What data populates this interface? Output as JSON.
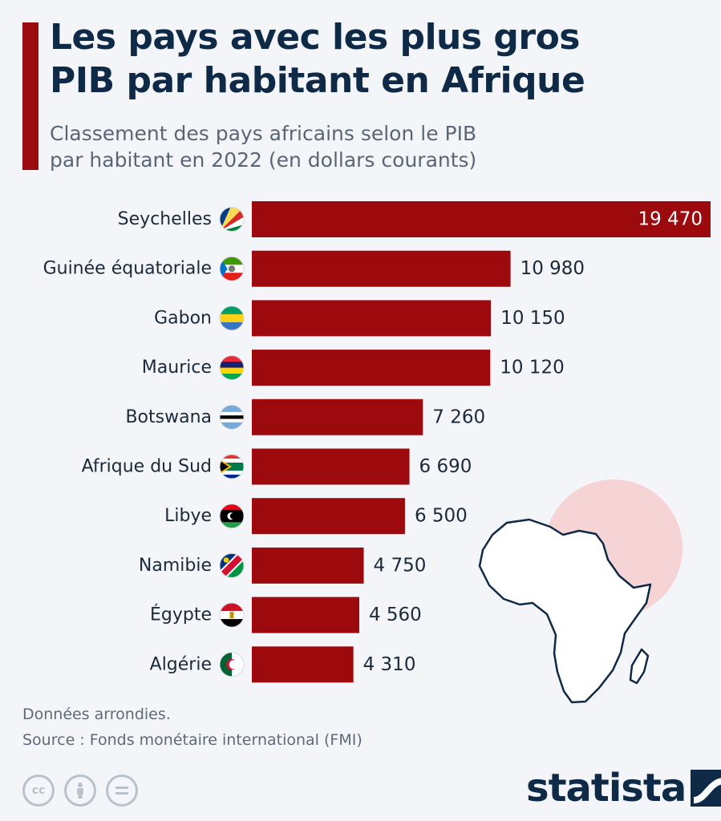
{
  "header": {
    "title_line1": "Les pays avec les plus gros",
    "title_line2": "PIB par habitant en Afrique",
    "subtitle_line1": "Classement des pays africains selon le PIB",
    "subtitle_line2": "par habitant en 2022 (en dollars courants)"
  },
  "chart_data": {
    "type": "bar",
    "orientation": "horizontal",
    "categories": [
      "Seychelles",
      "Guinée équatoriale",
      "Gabon",
      "Maurice",
      "Botswana",
      "Afrique du Sud",
      "Libye",
      "Namibie",
      "Égypte",
      "Algérie"
    ],
    "values": [
      19470,
      10980,
      10150,
      10120,
      7260,
      6690,
      6500,
      4750,
      4560,
      4310
    ],
    "value_labels": [
      "19 470",
      "10 980",
      "10 150",
      "10 120",
      "7 260",
      "6 690",
      "6 500",
      "4 750",
      "4 560",
      "4 310"
    ],
    "flags": [
      "seychelles-flag-icon",
      "equatorial-guinea-flag-icon",
      "gabon-flag-icon",
      "mauritius-flag-icon",
      "botswana-flag-icon",
      "south-africa-flag-icon",
      "libya-flag-icon",
      "namibia-flag-icon",
      "egypt-flag-icon",
      "algeria-flag-icon"
    ],
    "title": "Les pays avec les plus gros PIB par habitant en Afrique",
    "xlabel": "",
    "ylabel": "",
    "xlim": [
      0,
      19470
    ],
    "grid": false,
    "bar_color": "#9d0a0e"
  },
  "footer": {
    "note": "Données arrondies.",
    "source": "Source : Fonds monétaire international (FMI)",
    "logo": "statista",
    "license_icons": [
      "cc-icon",
      "by-icon",
      "nd-icon"
    ]
  },
  "colors": {
    "accent": "#9d0a0e",
    "title": "#0f2a47",
    "background": "#f3f5f9"
  }
}
